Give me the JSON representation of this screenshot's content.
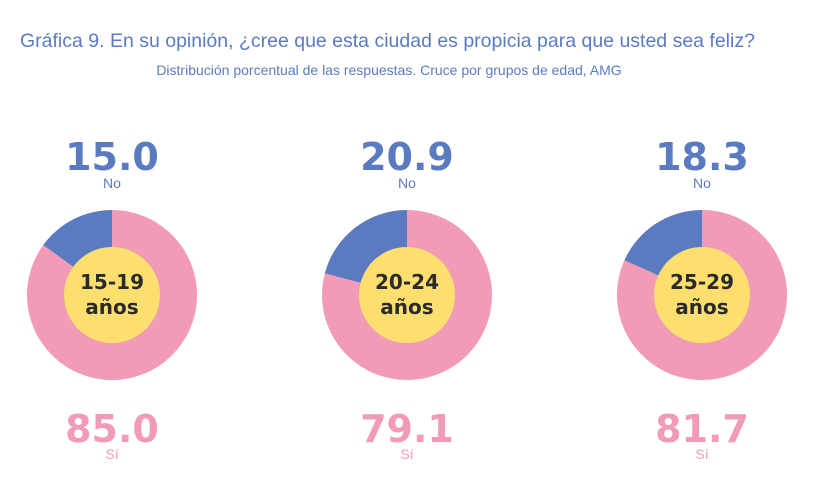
{
  "title": "Gráfica 9. En su opinión, ¿cree que esta ciudad es propicia para que usted sea feliz?",
  "subtitle": "Distribución porcentual de las respuestas. Cruce por grupos de edad, AMG",
  "colors": {
    "no": "#5b7bc0",
    "si": "#f29bb6",
    "center": "#fcdf6f",
    "title": "#5b7bc0"
  },
  "chart_data": [
    {
      "type": "pie",
      "group": "15-19 años",
      "group_lines": [
        "15-19",
        "años"
      ],
      "slices": [
        {
          "label": "No",
          "value": 15.0,
          "display": "15.0"
        },
        {
          "label": "Sí",
          "value": 85.0,
          "display": "85.0"
        }
      ]
    },
    {
      "type": "pie",
      "group": "20-24 años",
      "group_lines": [
        "20-24",
        "años"
      ],
      "slices": [
        {
          "label": "No",
          "value": 20.9,
          "display": "20.9"
        },
        {
          "label": "Sí",
          "value": 79.1,
          "display": "79.1"
        }
      ]
    },
    {
      "type": "pie",
      "group": "25-29 años",
      "group_lines": [
        "25-29",
        "años"
      ],
      "slices": [
        {
          "label": "No",
          "value": 18.3,
          "display": "18.3"
        },
        {
          "label": "Sí",
          "value": 81.7,
          "display": "81.7"
        }
      ]
    }
  ]
}
